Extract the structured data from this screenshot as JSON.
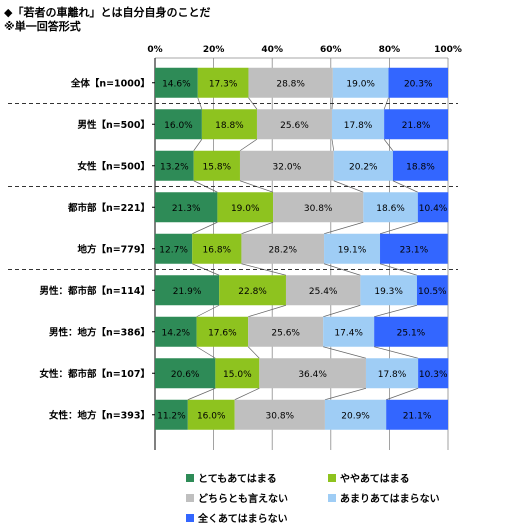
{
  "titles": {
    "line1": "◆「若者の車離れ」とは自分自身のことだ",
    "line2": "※単一回答形式"
  },
  "colors": {
    "c1": "#2e8b57",
    "c2": "#8ec31f",
    "c3": "#bfbfbf",
    "c4": "#9fcdf5",
    "c5": "#3366ff"
  },
  "legend": [
    {
      "label": "とてもあてはまる",
      "color": "#2e8b57"
    },
    {
      "label": "ややあてはまる",
      "color": "#8ec31f"
    },
    {
      "label": "どちらとも言えない",
      "color": "#bfbfbf"
    },
    {
      "label": "あまりあてはまらない",
      "color": "#9fcdf5"
    },
    {
      "label": "全くあてはまらない",
      "color": "#3366ff"
    }
  ],
  "chart_data": {
    "type": "bar",
    "orientation": "horizontal",
    "stacked": true,
    "xlim": [
      0,
      100
    ],
    "x_ticks": [
      "0%",
      "20%",
      "40%",
      "60%",
      "80%",
      "100%"
    ],
    "categories": [
      "全体【n=1000】",
      "男性【n=500】",
      "女性【n=500】",
      "都市部【n=221】",
      "地方【n=779】",
      "男性：都市部【n=114】",
      "男性：地方【n=386】",
      "女性：都市部【n=107】",
      "女性：地方【n=393】"
    ],
    "series": [
      {
        "name": "とてもあてはまる",
        "values": [
          14.6,
          16.0,
          13.2,
          21.3,
          12.7,
          21.9,
          14.2,
          20.6,
          11.2
        ]
      },
      {
        "name": "ややあてはまる",
        "values": [
          17.3,
          18.8,
          15.8,
          19.0,
          16.8,
          22.8,
          17.6,
          15.0,
          16.0
        ]
      },
      {
        "name": "どちらとも言えない",
        "values": [
          28.8,
          25.6,
          32.0,
          30.8,
          28.2,
          25.4,
          25.6,
          36.4,
          30.8
        ]
      },
      {
        "name": "あまりあてはまらない",
        "values": [
          19.0,
          17.8,
          20.2,
          18.6,
          19.1,
          19.3,
          17.4,
          17.8,
          20.9
        ]
      },
      {
        "name": "全くあてはまらない",
        "values": [
          20.3,
          21.8,
          18.8,
          10.4,
          23.1,
          10.5,
          25.1,
          10.3,
          21.1
        ]
      }
    ],
    "labels": [
      [
        "14.6%",
        "17.3%",
        "28.8%",
        "19.0%",
        "20.3%"
      ],
      [
        "16.0%",
        "18.8%",
        "25.6%",
        "17.8%",
        "21.8%"
      ],
      [
        "13.2%",
        "15.8%",
        "32.0%",
        "20.2%",
        "18.8%"
      ],
      [
        "21.3%",
        "19.0%",
        "30.8%",
        "18.6%",
        "10.4%"
      ],
      [
        "12.7%",
        "16.8%",
        "28.2%",
        "19.1%",
        "23.1%"
      ],
      [
        "21.9%",
        "22.8%",
        "25.4%",
        "19.3%",
        "10.5%"
      ],
      [
        "14.2%",
        "17.6%",
        "25.6%",
        "17.4%",
        "25.1%"
      ],
      [
        "20.6%",
        "15.0%",
        "36.4%",
        "17.8%",
        "10.3%"
      ],
      [
        "11.2%",
        "16.0%",
        "30.8%",
        "20.9%",
        "21.1%"
      ]
    ],
    "group_separators_after": [
      0,
      2,
      4
    ],
    "grid": true,
    "legend_position": "bottom"
  }
}
